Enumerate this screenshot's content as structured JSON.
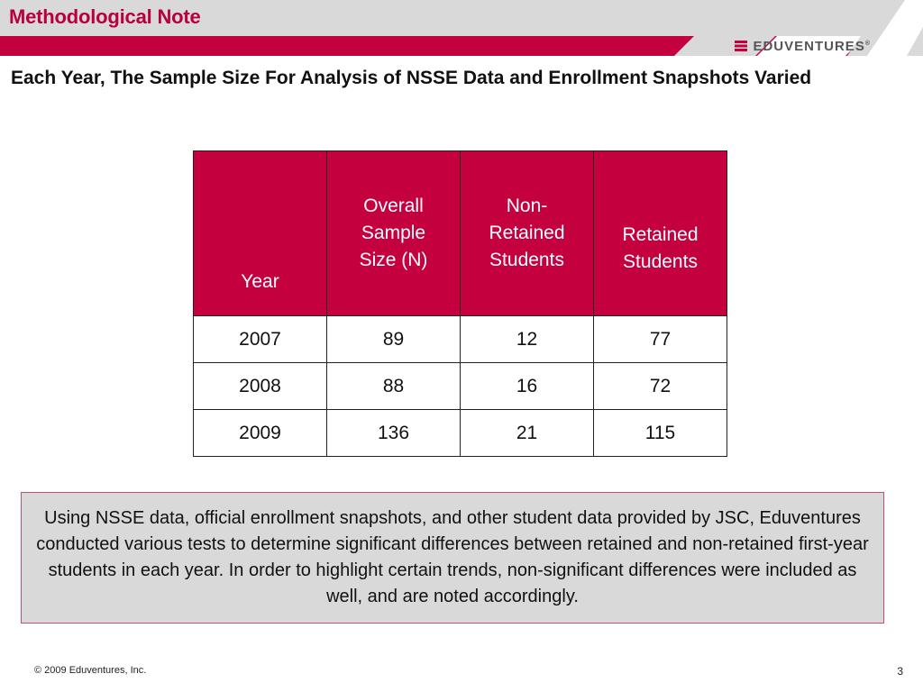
{
  "header": {
    "title": "Methodological Note",
    "brand": "EDUVENTURES",
    "brand_mark": "®",
    "brand_icon": "chevrons-right-icon",
    "accent_color": "#c4003f",
    "band_color": "#d9d9d9"
  },
  "subtitle": "Each Year, The Sample Size For Analysis of NSSE Data and Enrollment Snapshots Varied",
  "table": {
    "headers": {
      "year": "Year",
      "overall": [
        "Overall",
        "Sample",
        "Size (N)"
      ],
      "non_retained": [
        "Non-",
        "Retained",
        "Students"
      ],
      "retained": [
        "Retained",
        "Students"
      ]
    },
    "rows": [
      {
        "year": "2007",
        "overall": "89",
        "non_retained": "12",
        "retained": "77"
      },
      {
        "year": "2008",
        "overall": "88",
        "non_retained": "16",
        "retained": "72"
      },
      {
        "year": "2009",
        "overall": "136",
        "non_retained": "21",
        "retained": "115"
      }
    ]
  },
  "note": "Using NSSE data, official enrollment snapshots, and other student data provided by JSC, Eduventures conducted various tests to determine significant differences between retained and non-retained first-year students in each year. In order to highlight certain trends, non-significant differences were included as well, and are noted accordingly.",
  "footer": {
    "copyright": "© 2009 Eduventures, Inc.",
    "page_number": "3"
  }
}
